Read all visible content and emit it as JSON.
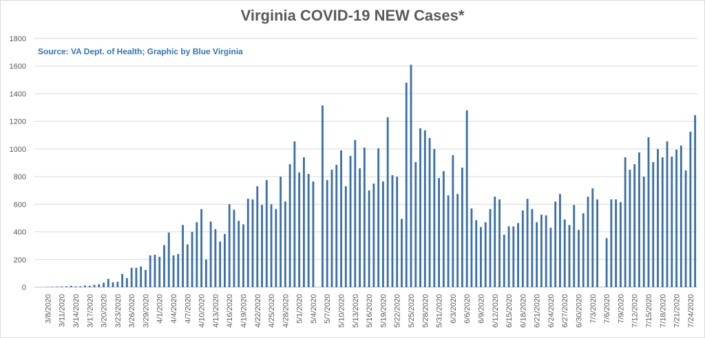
{
  "chart_data": {
    "type": "bar",
    "title": "Virginia COVID-19 NEW Cases*",
    "annotation": "Source: VA Dept. of Health; Graphic by Blue Virginia",
    "xlabel": "",
    "ylabel": "",
    "ylim": [
      0,
      1800
    ],
    "yticks": [
      0,
      200,
      400,
      600,
      800,
      1000,
      1200,
      1400,
      1600,
      1800
    ],
    "grid": true,
    "legend": "none",
    "bar_color": "#3a6fa8",
    "categories": [
      "3/8/2020",
      "3/9/2020",
      "3/10/2020",
      "3/11/2020",
      "3/12/2020",
      "3/13/2020",
      "3/14/2020",
      "3/15/2020",
      "3/16/2020",
      "3/17/2020",
      "3/18/2020",
      "3/19/2020",
      "3/20/2020",
      "3/21/2020",
      "3/22/2020",
      "3/23/2020",
      "3/24/2020",
      "3/25/2020",
      "3/26/2020",
      "3/27/2020",
      "3/28/2020",
      "3/29/2020",
      "3/30/2020",
      "3/31/2020",
      "4/1/2020",
      "4/2/2020",
      "4/3/2020",
      "4/4/2020",
      "4/5/2020",
      "4/6/2020",
      "4/7/2020",
      "4/8/2020",
      "4/9/2020",
      "4/10/2020",
      "4/11/2020",
      "4/12/2020",
      "4/13/2020",
      "4/14/2020",
      "4/15/2020",
      "4/16/2020",
      "4/17/2020",
      "4/18/2020",
      "4/19/2020",
      "4/20/2020",
      "4/21/2020",
      "4/22/2020",
      "4/23/2020",
      "4/24/2020",
      "4/25/2020",
      "4/26/2020",
      "4/27/2020",
      "4/28/2020",
      "4/29/2020",
      "4/30/2020",
      "5/1/2020",
      "5/2/2020",
      "5/3/2020",
      "5/4/2020",
      "5/5/2020",
      "5/6/2020",
      "5/7/2020",
      "5/8/2020",
      "5/9/2020",
      "5/10/2020",
      "5/11/2020",
      "5/12/2020",
      "5/13/2020",
      "5/14/2020",
      "5/15/2020",
      "5/16/2020",
      "5/17/2020",
      "5/18/2020",
      "5/19/2020",
      "5/20/2020",
      "5/21/2020",
      "5/22/2020",
      "5/23/2020",
      "5/24/2020",
      "5/25/2020",
      "5/26/2020",
      "5/27/2020",
      "5/28/2020",
      "5/29/2020",
      "5/30/2020",
      "5/31/2020",
      "6/1/2020",
      "6/2/2020",
      "6/3/2020",
      "6/4/2020",
      "6/5/2020",
      "6/6/2020",
      "6/7/2020",
      "6/8/2020",
      "6/9/2020",
      "6/10/2020",
      "6/11/2020",
      "6/12/2020",
      "6/13/2020",
      "6/14/2020",
      "6/15/2020",
      "6/16/2020",
      "6/17/2020",
      "6/18/2020",
      "6/19/2020",
      "6/20/2020",
      "6/21/2020",
      "6/22/2020",
      "6/23/2020",
      "6/24/2020",
      "6/25/2020",
      "6/26/2020",
      "6/27/2020",
      "6/28/2020",
      "6/29/2020",
      "6/30/2020",
      "7/1/2020",
      "7/2/2020",
      "7/3/2020",
      "7/4/2020",
      "7/5/2020",
      "7/6/2020",
      "7/7/2020",
      "7/8/2020",
      "7/9/2020",
      "7/10/2020",
      "7/11/2020",
      "7/12/2020",
      "7/13/2020",
      "7/14/2020",
      "7/15/2020",
      "7/16/2020",
      "7/17/2020",
      "7/18/2020",
      "7/19/2020",
      "7/20/2020",
      "7/21/2020",
      "7/22/2020",
      "7/23/2020",
      "7/24/2020",
      "7/25/2020"
    ],
    "tick_labels": [
      "3/8/2020",
      "3/11/2020",
      "3/14/2020",
      "3/17/2020",
      "3/20/2020",
      "3/23/2020",
      "3/26/2020",
      "3/29/2020",
      "4/1/2020",
      "4/4/2020",
      "4/7/2020",
      "4/10/2020",
      "4/13/2020",
      "4/16/2020",
      "4/19/2020",
      "4/22/2020",
      "4/25/2020",
      "4/28/2020",
      "5/1/2020",
      "5/4/2020",
      "5/7/2020",
      "5/10/2020",
      "5/13/2020",
      "5/16/2020",
      "5/19/2020",
      "5/22/2020",
      "5/25/2020",
      "5/28/2020",
      "5/31/2020",
      "6/3/2020",
      "6/6/2020",
      "6/9/2020",
      "6/12/2020",
      "6/15/2020",
      "6/18/2020",
      "6/21/2020",
      "6/24/2020",
      "6/27/2020",
      "6/30/2020",
      "7/3/2020",
      "7/6/2020",
      "7/9/2020",
      "7/12/2020",
      "7/15/2020",
      "7/18/2020",
      "7/21/2020",
      "7/24/2020"
    ],
    "values": [
      2,
      3,
      4,
      5,
      6,
      10,
      6,
      6,
      12,
      10,
      17,
      21,
      32,
      60,
      35,
      39,
      95,
      65,
      140,
      140,
      150,
      125,
      230,
      235,
      220,
      305,
      395,
      230,
      240,
      450,
      310,
      400,
      470,
      565,
      200,
      475,
      420,
      330,
      385,
      600,
      560,
      480,
      455,
      640,
      635,
      730,
      595,
      775,
      600,
      565,
      800,
      620,
      890,
      1055,
      830,
      940,
      820,
      765,
      0,
      1315,
      775,
      850,
      885,
      990,
      730,
      950,
      1065,
      860,
      1010,
      700,
      750,
      1005,
      765,
      1230,
      810,
      800,
      495,
      1480,
      1610,
      905,
      1150,
      1135,
      1080,
      1000,
      790,
      840,
      665,
      955,
      675,
      865,
      1280,
      570,
      485,
      435,
      470,
      565,
      655,
      635,
      380,
      440,
      440,
      465,
      555,
      640,
      565,
      470,
      525,
      520,
      430,
      620,
      675,
      490,
      450,
      595,
      415,
      535,
      655,
      715,
      635,
      0,
      355,
      635,
      635,
      615,
      940,
      850,
      890,
      975,
      800,
      1085,
      905,
      1000,
      940,
      1055,
      945,
      995,
      1025,
      845,
      1125,
      1245
    ]
  }
}
